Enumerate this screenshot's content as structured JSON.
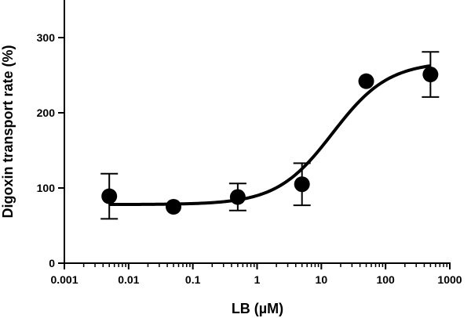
{
  "chart_data": {
    "type": "scatter",
    "xlabel": "LB (µM)",
    "ylabel": "Digoxin transport rate (%)",
    "xscale": "log",
    "xlim": [
      0.001,
      1000
    ],
    "ylim": [
      0,
      350
    ],
    "x_ticks": [
      0.001,
      0.01,
      0.1,
      1,
      10,
      100,
      1000
    ],
    "x_tick_labels": [
      "0.001",
      "0.01",
      "0.1",
      "1",
      "10",
      "100",
      "1000"
    ],
    "y_ticks": [
      0,
      100,
      200,
      300
    ],
    "y_tick_labels": [
      "0",
      "100",
      "200",
      "300"
    ],
    "grid": false,
    "series": [
      {
        "x": [
          0.005,
          0.05,
          0.5,
          5,
          50,
          500
        ],
        "y": [
          89,
          75,
          88,
          105,
          242,
          251
        ],
        "error": [
          30,
          null,
          18,
          28,
          null,
          30
        ]
      }
    ],
    "fit_curve": {
      "model": "sigmoidal dose-response",
      "bottom": 78,
      "top": 268,
      "ec50": 15,
      "hill": 1
    },
    "colors": {
      "points": "#000000",
      "curve": "#000000",
      "axes": "#000000"
    }
  }
}
